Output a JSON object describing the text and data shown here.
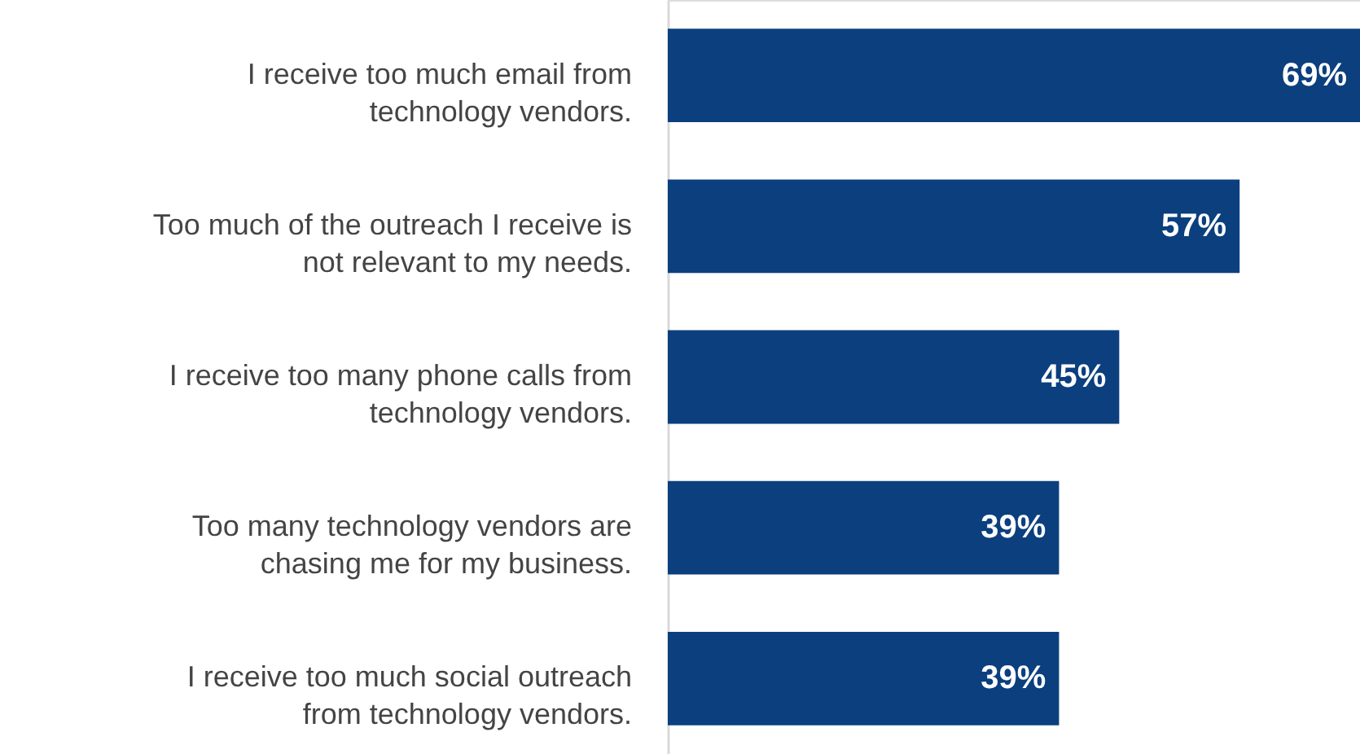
{
  "chart_data": {
    "type": "bar",
    "orientation": "horizontal",
    "categories": [
      "I receive too much email from technology vendors.",
      "Too much of the outreach I receive is not relevant to my needs.",
      "I receive too many phone calls from technology vendors.",
      "Too many technology vendors are chasing me for my business.",
      "I receive too much social outreach from technology vendors."
    ],
    "values": [
      69,
      57,
      45,
      39,
      39
    ],
    "value_labels": [
      "69%",
      "57%",
      "45%",
      "39%",
      "39%"
    ],
    "color": "#0b3f7e"
  }
}
